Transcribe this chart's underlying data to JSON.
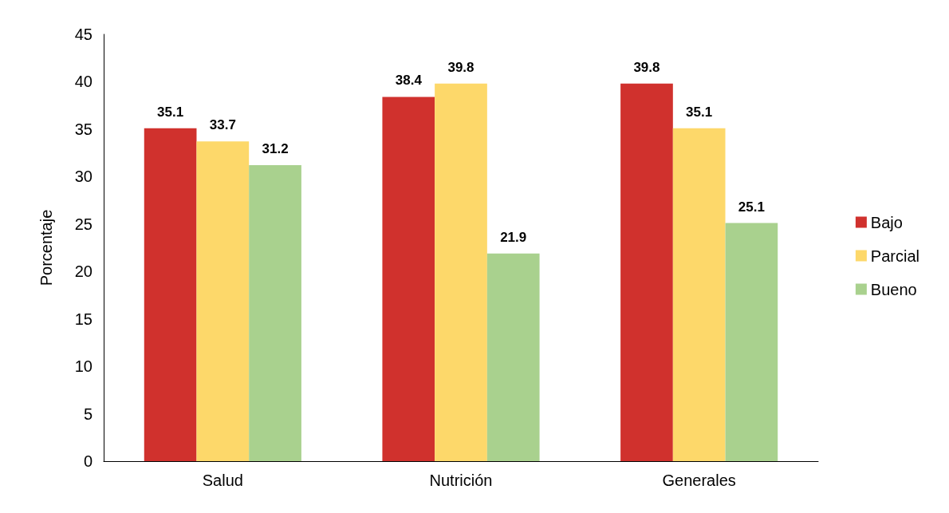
{
  "chart_data": {
    "type": "bar",
    "ylabel": "Porcentaje",
    "categories": [
      "Salud",
      "Nutrición",
      "Generales"
    ],
    "series": [
      {
        "name": "Bajo",
        "color": "#d0312d",
        "values": [
          35.1,
          38.4,
          39.8
        ]
      },
      {
        "name": "Parcial",
        "color": "#fdd86a",
        "values": [
          33.7,
          39.8,
          35.1
        ]
      },
      {
        "name": "Bueno",
        "color": "#a9d18e",
        "values": [
          31.2,
          21.9,
          25.1
        ]
      }
    ],
    "ylim": [
      0,
      45
    ],
    "yticks": [
      0,
      5,
      10,
      15,
      20,
      25,
      30,
      35,
      40,
      45
    ],
    "grid": false,
    "legend": "right",
    "data_labels": true
  }
}
